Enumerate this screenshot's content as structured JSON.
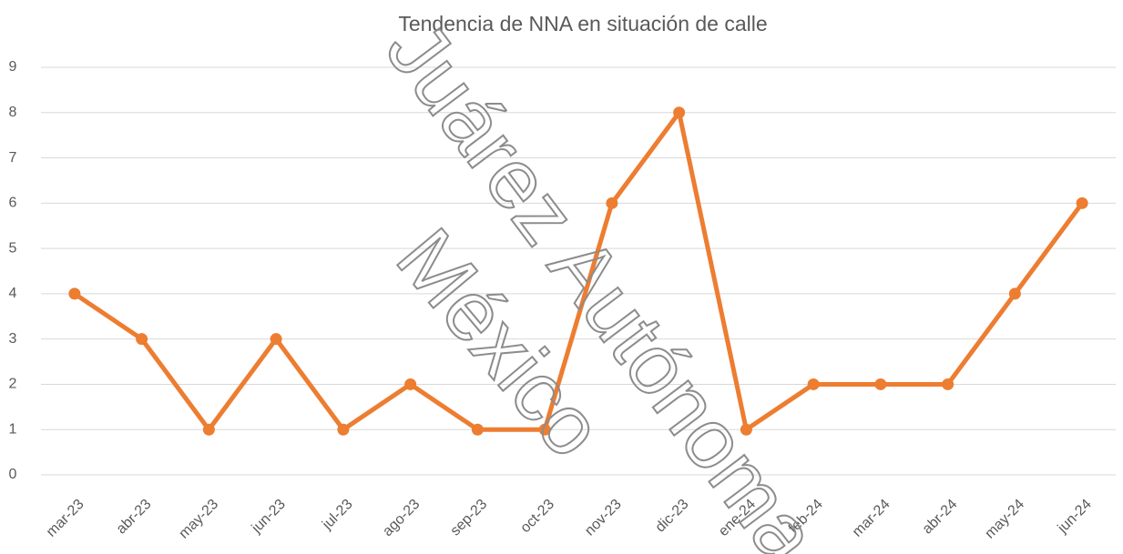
{
  "chart_data": {
    "type": "line",
    "title": "Tendencia de NNA en situación de calle",
    "categories": [
      "mar-23",
      "abr-23",
      "may-23",
      "jun-23",
      "jul-23",
      "ago-23",
      "sep-23",
      "oct-23",
      "nov-23",
      "dic-23",
      "ene-24",
      "feb-24",
      "mar-24",
      "abr-24",
      "may-24",
      "jun-24"
    ],
    "series": [
      {
        "name": "NNA",
        "color": "#ed7d31",
        "values": [
          4,
          3,
          1,
          3,
          1,
          2,
          1,
          1,
          6,
          8,
          1,
          2,
          2,
          2,
          4,
          6
        ]
      }
    ],
    "ylim": [
      0,
      9
    ],
    "yticks": [
      0,
      1,
      2,
      3,
      4,
      5,
      6,
      7,
      8,
      9
    ],
    "grid": true,
    "legend": false,
    "annotations": [
      "Juárez Autónoma",
      "México"
    ]
  }
}
